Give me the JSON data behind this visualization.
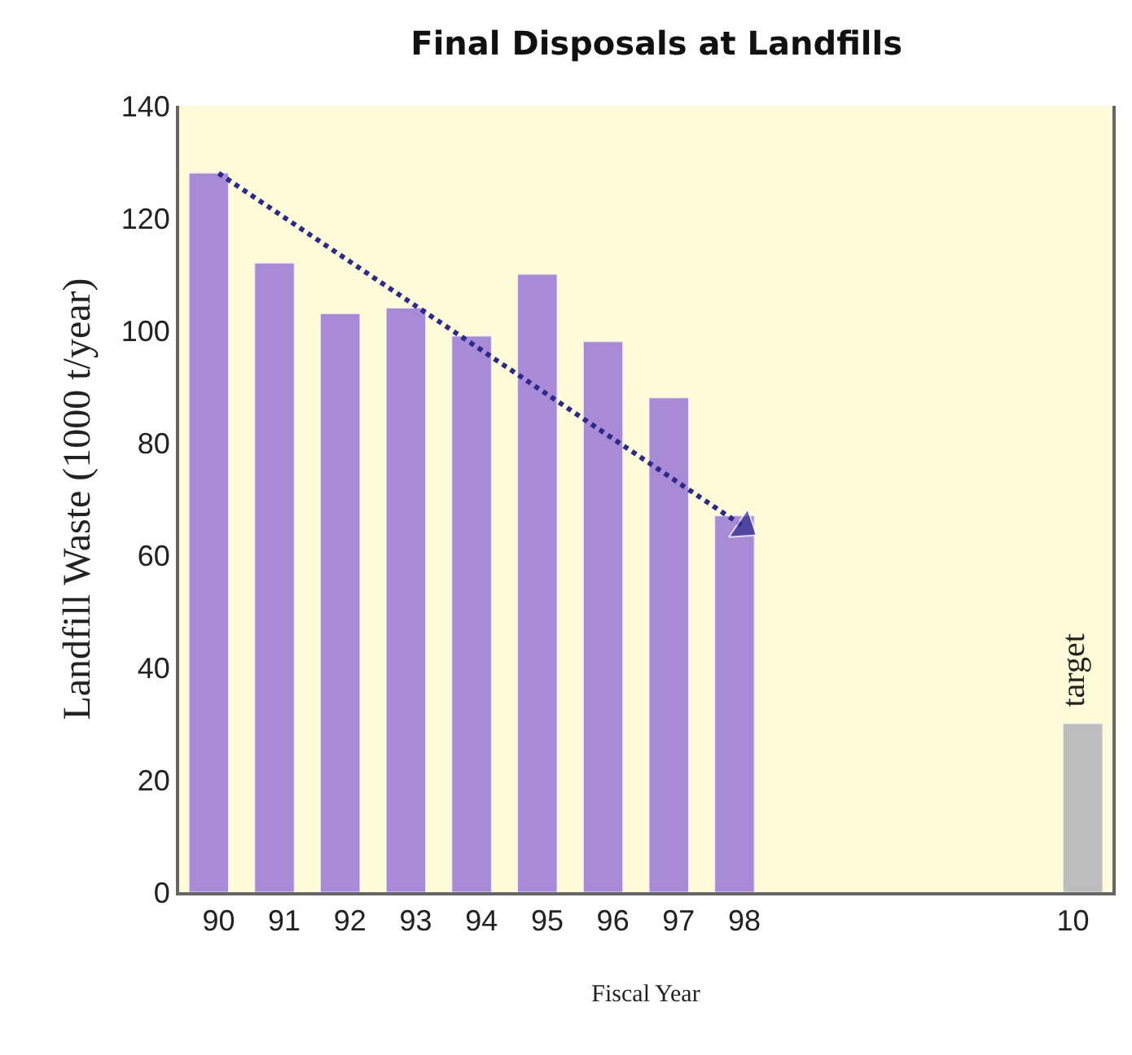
{
  "chart_data": {
    "type": "bar",
    "title": "Final Disposals at Landfills",
    "xlabel": "Fiscal Year",
    "ylabel": "Landfill Waste (1000 t/year)",
    "categories": [
      "90",
      "91",
      "92",
      "93",
      "94",
      "95",
      "96",
      "97",
      "98",
      null,
      null,
      null,
      null,
      "10"
    ],
    "series": [
      {
        "color": "#a98ad6",
        "values": [
          128,
          112,
          103,
          104,
          99,
          110,
          98,
          88,
          67,
          null,
          null,
          null,
          null,
          null
        ]
      },
      {
        "color": "#bdbdbd",
        "values": [
          null,
          null,
          null,
          null,
          null,
          null,
          null,
          null,
          null,
          null,
          null,
          null,
          null,
          30
        ]
      },
      {
        "type": "line",
        "color": "#2a2a8c",
        "x": [
          "90",
          "98"
        ],
        "values": [
          128,
          65
        ],
        "line_style": "dotted",
        "marker": "triangle"
      }
    ],
    "annotations": [
      {
        "text": "target",
        "x": "10",
        "y": 30
      }
    ],
    "ylim": [
      0,
      140
    ],
    "yticks": [
      0,
      20,
      40,
      60,
      80,
      100,
      120,
      140
    ],
    "grid": false
  }
}
